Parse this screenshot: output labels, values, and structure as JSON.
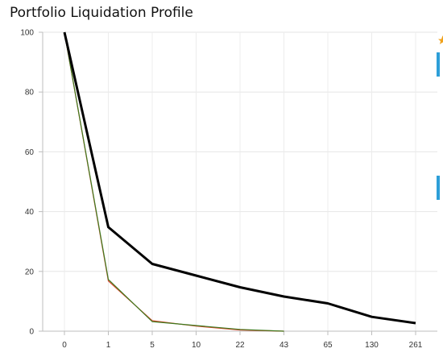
{
  "chart_data": {
    "type": "line",
    "title": "Portfolio Liquidation Profile",
    "xlabel": "",
    "ylabel": "",
    "categories": [
      "0",
      "1",
      "5",
      "10",
      "22",
      "43",
      "65",
      "130",
      "261"
    ],
    "ylim": [
      0,
      100
    ],
    "yticks": [
      0,
      20,
      40,
      60,
      80,
      100
    ],
    "grid": true,
    "series": [
      {
        "color": "#000000",
        "values": [
          100,
          34.8,
          22.5,
          18.6,
          14.7,
          11.6,
          9.3,
          4.8,
          2.7
        ]
      },
      {
        "color": "#d9452b",
        "values": [
          100,
          16.8,
          3.5,
          1.7,
          0.4,
          0,
          null,
          null,
          null
        ]
      },
      {
        "color": "#3e7a1f",
        "values": [
          100,
          17.3,
          3.2,
          1.9,
          0.6,
          0,
          null,
          null,
          null
        ]
      }
    ],
    "legend_markers": [
      {
        "color": "#f0a21c",
        "shape": "star"
      },
      {
        "color": "#2d9fd8",
        "shape": "bar"
      },
      {
        "color": "#2d9fd8",
        "shape": "bar"
      }
    ]
  }
}
